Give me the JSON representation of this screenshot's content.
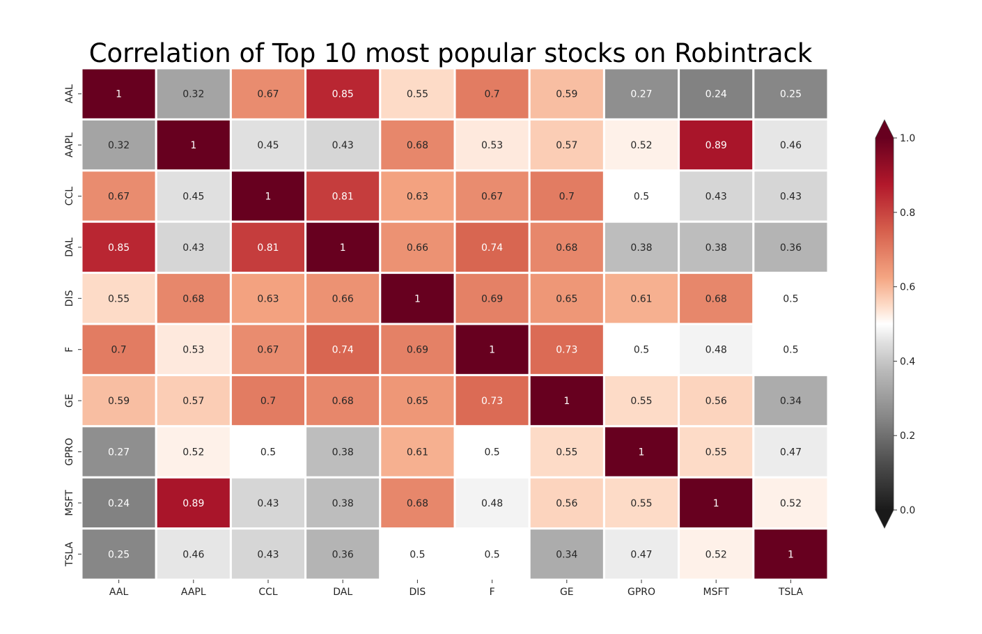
{
  "chart_data": {
    "type": "heatmap",
    "title": "Correlation of Top 10 most popular stocks on Robintrack",
    "xlabel": "",
    "ylabel": "",
    "x_categories": [
      "AAL",
      "AAPL",
      "CCL",
      "DAL",
      "DIS",
      "F",
      "GE",
      "GPRO",
      "MSFT",
      "TSLA"
    ],
    "y_categories": [
      "AAL",
      "AAPL",
      "CCL",
      "DAL",
      "DIS",
      "F",
      "GE",
      "GPRO",
      "MSFT",
      "TSLA"
    ],
    "values": [
      [
        1,
        0.32,
        0.67,
        0.85,
        0.55,
        0.7,
        0.59,
        0.27,
        0.24,
        0.25
      ],
      [
        0.32,
        1,
        0.45,
        0.43,
        0.68,
        0.53,
        0.57,
        0.52,
        0.89,
        0.46
      ],
      [
        0.67,
        0.45,
        1,
        0.81,
        0.63,
        0.67,
        0.7,
        0.5,
        0.43,
        0.43
      ],
      [
        0.85,
        0.43,
        0.81,
        1,
        0.66,
        0.74,
        0.68,
        0.38,
        0.38,
        0.36
      ],
      [
        0.55,
        0.68,
        0.63,
        0.66,
        1,
        0.69,
        0.65,
        0.61,
        0.68,
        0.5
      ],
      [
        0.7,
        0.53,
        0.67,
        0.74,
        0.69,
        1,
        0.73,
        0.5,
        0.48,
        0.5
      ],
      [
        0.59,
        0.57,
        0.7,
        0.68,
        0.65,
        0.73,
        1,
        0.55,
        0.56,
        0.34
      ],
      [
        0.27,
        0.52,
        0.5,
        0.38,
        0.61,
        0.5,
        0.55,
        1,
        0.55,
        0.47
      ],
      [
        0.24,
        0.89,
        0.43,
        0.38,
        0.68,
        0.48,
        0.56,
        0.55,
        1,
        0.52
      ],
      [
        0.25,
        0.46,
        0.43,
        0.36,
        0.5,
        0.5,
        0.34,
        0.47,
        0.52,
        1
      ]
    ],
    "colorbar": {
      "range": [
        0.0,
        1.0
      ],
      "ticks": [
        1.0,
        0.8,
        0.6,
        0.4,
        0.2,
        0.0
      ],
      "tick_labels": [
        "1.0",
        "0.8",
        "0.6",
        "0.4",
        "0.2",
        "0.0"
      ],
      "extend": "both",
      "colormap_stops": [
        {
          "v": 0.0,
          "color": "#1a1a1a"
        },
        {
          "v": 0.125,
          "color": "#4d4d4d"
        },
        {
          "v": 0.25,
          "color": "#878787"
        },
        {
          "v": 0.375,
          "color": "#bababa"
        },
        {
          "v": 0.45,
          "color": "#e0e0e0"
        },
        {
          "v": 0.5,
          "color": "#ffffff"
        },
        {
          "v": 0.55,
          "color": "#fddbc7"
        },
        {
          "v": 0.625,
          "color": "#f4a582"
        },
        {
          "v": 0.75,
          "color": "#d6604d"
        },
        {
          "v": 0.875,
          "color": "#b2182b"
        },
        {
          "v": 1.0,
          "color": "#67001f"
        }
      ]
    },
    "grid": false,
    "legend": "colorbar-right"
  }
}
